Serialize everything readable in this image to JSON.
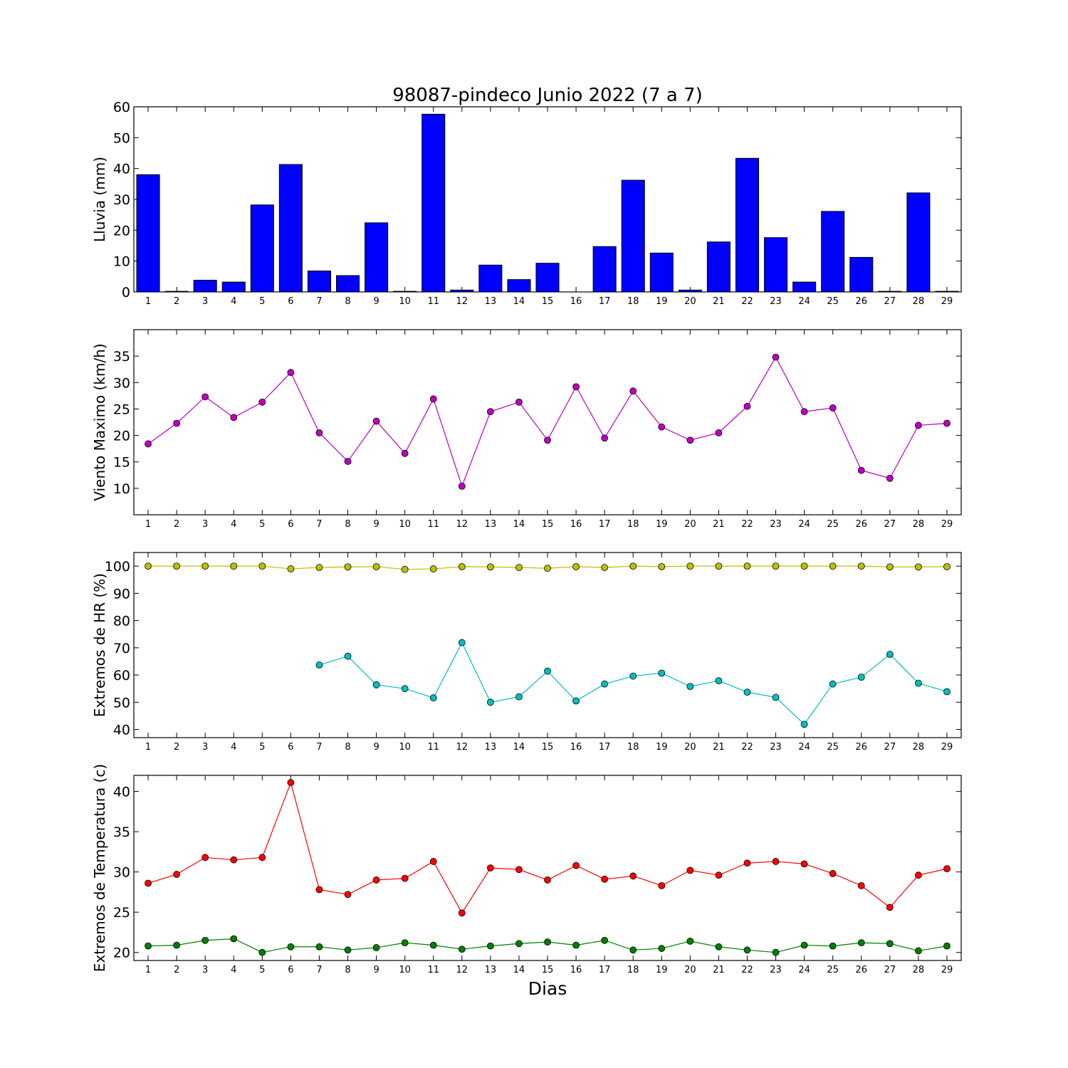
{
  "title": "98087-pindeco Junio 2022  (7 a 7)",
  "xlabel": "Dias",
  "chart_data": [
    {
      "type": "bar",
      "ylabel": "Lluvia (mm)",
      "ylim": [
        0,
        60
      ],
      "yticks": [
        0,
        10,
        20,
        30,
        40,
        50,
        60
      ],
      "categories": [
        1,
        2,
        3,
        4,
        5,
        6,
        7,
        8,
        9,
        10,
        11,
        12,
        13,
        14,
        15,
        16,
        17,
        18,
        19,
        20,
        21,
        22,
        23,
        24,
        25,
        26,
        27,
        28,
        29
      ],
      "series": [
        {
          "color": "#0000ff",
          "values": [
            38.0,
            0.2,
            3.8,
            3.2,
            28.2,
            41.3,
            6.8,
            5.3,
            22.4,
            0.2,
            57.6,
            0.6,
            8.7,
            4.0,
            9.3,
            0,
            14.7,
            36.2,
            12.6,
            0.6,
            16.2,
            43.3,
            17.6,
            3.2,
            26.1,
            11.2,
            0.2,
            32.1,
            0.2
          ]
        }
      ],
      "grid": false
    },
    {
      "type": "line",
      "ylabel": "Viento Maximo (km/h)",
      "ylim": [
        5,
        40
      ],
      "yticks": [
        10,
        15,
        20,
        25,
        30,
        35
      ],
      "x": [
        1,
        2,
        3,
        4,
        5,
        6,
        7,
        8,
        9,
        10,
        11,
        12,
        13,
        14,
        15,
        16,
        17,
        18,
        19,
        20,
        21,
        22,
        23,
        24,
        25,
        26,
        27,
        28,
        29
      ],
      "series": [
        {
          "color": "#bf00bf",
          "values": [
            18.4,
            22.3,
            27.3,
            23.4,
            26.3,
            31.9,
            20.5,
            15.1,
            22.7,
            16.6,
            26.9,
            10.4,
            24.5,
            26.3,
            19.1,
            29.2,
            19.5,
            28.4,
            21.6,
            19.1,
            20.5,
            25.5,
            34.8,
            24.5,
            25.2,
            13.4,
            11.9,
            21.9,
            22.3
          ]
        }
      ],
      "grid": false
    },
    {
      "type": "line",
      "ylabel": "Extremos de HR (%)",
      "ylim": [
        37,
        105
      ],
      "yticks": [
        40,
        50,
        60,
        70,
        80,
        90,
        100
      ],
      "x": [
        1,
        2,
        3,
        4,
        5,
        6,
        7,
        8,
        9,
        10,
        11,
        12,
        13,
        14,
        15,
        16,
        17,
        18,
        19,
        20,
        21,
        22,
        23,
        24,
        25,
        26,
        27,
        28,
        29
      ],
      "series": [
        {
          "color": "#bfbf00",
          "values": [
            100,
            100,
            100,
            100,
            100,
            99,
            99.5,
            99.7,
            99.8,
            98.8,
            99,
            99.8,
            99.7,
            99.5,
            99.2,
            99.8,
            99.5,
            100,
            99.8,
            100,
            100,
            100,
            100,
            100,
            100,
            100,
            99.7,
            99.7,
            99.8
          ]
        },
        {
          "color": "#00bfbf",
          "values": [
            null,
            null,
            null,
            null,
            null,
            null,
            63.7,
            66.9,
            56.4,
            55,
            51.6,
            71.9,
            50,
            52,
            61.4,
            50.5,
            56.7,
            59.6,
            60.7,
            55.8,
            57.9,
            53.7,
            51.8,
            41.9,
            56.7,
            59.2,
            67.6,
            57,
            53.9
          ]
        }
      ],
      "grid": false
    },
    {
      "type": "line",
      "ylabel": "Extremos de Temperatura (c)",
      "ylim": [
        19,
        42
      ],
      "yticks": [
        20,
        25,
        30,
        35,
        40
      ],
      "x": [
        1,
        2,
        3,
        4,
        5,
        6,
        7,
        8,
        9,
        10,
        11,
        12,
        13,
        14,
        15,
        16,
        17,
        18,
        19,
        20,
        21,
        22,
        23,
        24,
        25,
        26,
        27,
        28,
        29
      ],
      "series": [
        {
          "color": "#ff0000",
          "values": [
            28.6,
            29.7,
            31.8,
            31.5,
            31.8,
            41.1,
            27.8,
            27.2,
            29.0,
            29.2,
            31.3,
            24.9,
            30.5,
            30.3,
            29.0,
            30.8,
            29.1,
            29.5,
            28.3,
            30.2,
            29.6,
            31.1,
            31.3,
            31.0,
            29.8,
            28.3,
            25.6,
            29.6,
            30.4
          ]
        },
        {
          "color": "#008000",
          "values": [
            20.8,
            20.9,
            21.5,
            21.7,
            20.0,
            20.7,
            20.7,
            20.3,
            20.6,
            21.2,
            20.9,
            20.4,
            20.8,
            21.1,
            21.3,
            20.9,
            21.5,
            20.3,
            20.5,
            21.4,
            20.7,
            20.3,
            20.0,
            20.9,
            20.8,
            21.2,
            21.1,
            20.2,
            20.8
          ]
        }
      ],
      "grid": false
    }
  ]
}
